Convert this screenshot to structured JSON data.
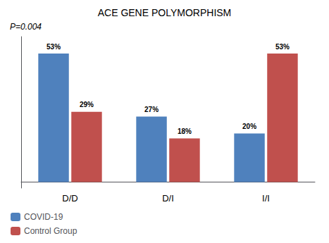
{
  "chart_data": {
    "type": "bar",
    "title": "ACE GENE POLYMORPHISM",
    "categories": [
      "D/D",
      "D/I",
      "I/I"
    ],
    "series": [
      {
        "name": "COVID-19",
        "color": "#4F81BD",
        "values": [
          53,
          27,
          20
        ],
        "value_labels": [
          "53%",
          "27%",
          "20%"
        ]
      },
      {
        "name": "Control Group",
        "color": "#C0504D",
        "values": [
          29,
          18,
          53
        ],
        "value_labels": [
          "29%",
          "18%",
          "53%"
        ]
      }
    ],
    "annotation": "P=0.004",
    "ylim": [
      -2.5,
      60
    ],
    "data_labels": true,
    "tick_labels": "x",
    "grid": false,
    "legend": "lower left"
  }
}
